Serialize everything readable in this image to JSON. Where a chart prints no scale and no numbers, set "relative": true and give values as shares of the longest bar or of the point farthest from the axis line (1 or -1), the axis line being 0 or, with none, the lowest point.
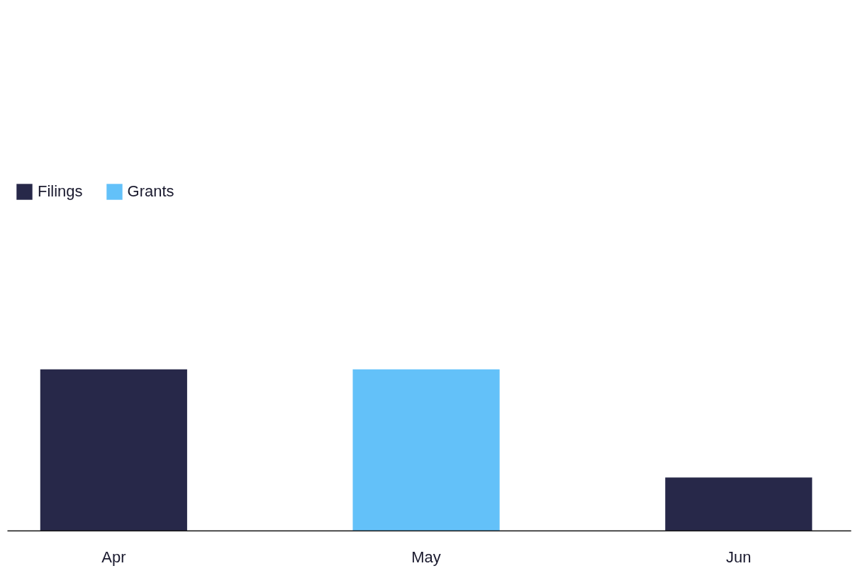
{
  "chart_data": {
    "type": "bar",
    "relative": true,
    "legend": "top left",
    "categories": [
      "Apr",
      "May",
      "Jun"
    ],
    "series": [
      {
        "name": "Filings",
        "color": "#272849",
        "values": [
          1,
          null,
          0.33
        ]
      },
      {
        "name": "Grants",
        "color": "#63c1f9",
        "values": [
          null,
          1,
          null
        ]
      }
    ]
  }
}
